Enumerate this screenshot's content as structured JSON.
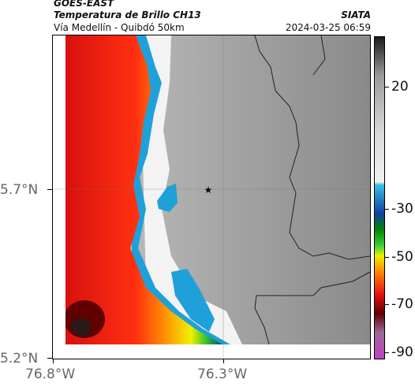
{
  "header": {
    "satellite": "GOES-EAST",
    "product": "Temperatura de Brillo CH13",
    "region": "Vía Medellín - Quibdó 50km",
    "agency": "SIATA",
    "datetime": "2024-03-25 06:59"
  },
  "map": {
    "lat_labels": [
      "5.7°N",
      "5.2°N"
    ],
    "lon_labels": [
      "76.8°W",
      "76.3°W"
    ],
    "marker_icon": "star-icon"
  },
  "colorbar": {
    "ticks": [
      "20",
      "-30",
      "-50",
      "-70",
      "-90"
    ],
    "colors": [
      "#1a1a1a",
      "#9a9a9a",
      "#d9d9d9",
      "#f2f2f2",
      "#38c0e6",
      "#1040a0",
      "#008800",
      "#3cd03c",
      "#f0f000",
      "#ff9a00",
      "#e81010",
      "#600000",
      "#9a6a9a",
      "#c040c0"
    ]
  }
}
